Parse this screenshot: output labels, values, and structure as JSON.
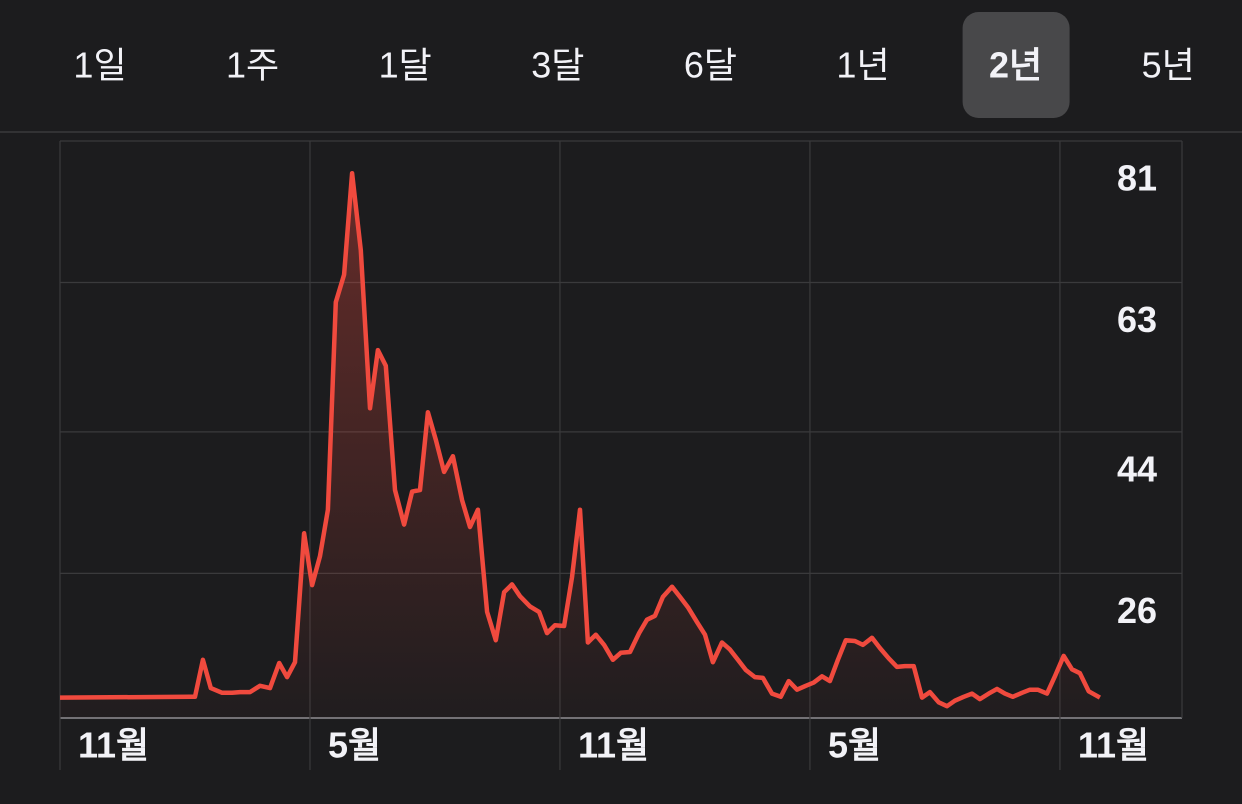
{
  "tabs": {
    "items": [
      "1일",
      "1주",
      "1달",
      "3달",
      "6달",
      "1년",
      "2년",
      "5년"
    ],
    "selected": 6
  },
  "chart_data": {
    "type": "line",
    "x": [
      1.0,
      4.12,
      4.24,
      4.43,
      4.62,
      4.89,
      5.13,
      5.32,
      5.56,
      5.8,
      6.04,
      6.26,
      6.45,
      6.64,
      6.86,
      7.05,
      7.24,
      7.43,
      7.62,
      7.82,
      8.01,
      8.22,
      8.44,
      8.63,
      8.82,
      9.04,
      9.26,
      9.45,
      9.64,
      9.83,
      10.02,
      10.22,
      10.43,
      10.65,
      10.84,
      11.03,
      11.25,
      11.46,
      11.66,
      11.85,
      12.04,
      12.28,
      12.5,
      12.69,
      12.88,
      13.1,
      13.29,
      13.48,
      13.67,
      13.86,
      14.06,
      14.27,
      14.46,
      14.68,
      14.9,
      15.09,
      15.28,
      15.47,
      15.69,
      15.88,
      16.07,
      16.29,
      16.48,
      16.67,
      16.89,
      17.08,
      17.27,
      17.46,
      17.68,
      17.87,
      18.09,
      18.3,
      18.49,
      18.69,
      18.9,
      19.09,
      19.29,
      19.48,
      19.67,
      19.86,
      20.08,
      20.27,
      20.49,
      20.68,
      20.89,
      21.09,
      21.28,
      21.49,
      21.69,
      21.88,
      22.09,
      22.29,
      22.48,
      22.69,
      22.89,
      23.08,
      23.29,
      23.49,
      23.68,
      23.87,
      24.09,
      24.28,
      24.47,
      24.69,
      24.88,
      25.09,
      25.29,
      25.48,
      25.69,
      25.96
    ],
    "series": [
      {
        "color": "#f04a3e",
        "values": [
          10.2,
          10.3,
          10.3,
          15.0,
          11.4,
          10.8,
          10.8,
          10.9,
          10.9,
          11.7,
          11.4,
          14.6,
          12.8,
          14.7,
          31.1,
          24.5,
          28.2,
          34.1,
          60.5,
          64.0,
          76.9,
          67.1,
          47.0,
          54.4,
          52.4,
          36.6,
          32.2,
          36.4,
          36.6,
          46.5,
          43.0,
          38.9,
          40.9,
          35.3,
          31.9,
          34.1,
          21.1,
          17.5,
          23.6,
          24.6,
          23.1,
          21.8,
          21.1,
          18.4,
          19.4,
          19.3,
          25.5,
          34.1,
          17.2,
          18.2,
          16.9,
          15.0,
          15.9,
          16.0,
          18.4,
          20.1,
          20.6,
          23.0,
          24.3,
          23.0,
          21.7,
          19.8,
          18.2,
          14.7,
          17.2,
          16.3,
          15.0,
          13.7,
          12.8,
          12.7,
          10.7,
          10.3,
          12.3,
          11.2,
          11.7,
          12.1,
          12.9,
          12.3,
          15.0,
          17.5,
          17.4,
          16.9,
          17.8,
          16.5,
          15.2,
          14.1,
          14.2,
          14.2,
          10.2,
          10.9,
          9.6,
          9.1,
          9.8,
          10.3,
          10.7,
          10.0,
          10.7,
          11.3,
          10.7,
          10.3,
          10.8,
          11.2,
          11.2,
          10.7,
          12.9,
          15.5,
          13.8,
          13.3,
          11.0,
          10.2
        ]
      }
    ],
    "xlim": [
      1,
      27.93
    ],
    "ylim": [
      7.6,
      81
    ],
    "xticks": [
      {
        "value": 1,
        "label": "11월"
      },
      {
        "value": 7,
        "label": "5월"
      },
      {
        "value": 13,
        "label": "11월"
      },
      {
        "value": 19,
        "label": "5월"
      },
      {
        "value": 25,
        "label": "11월"
      }
    ],
    "yticks": [
      81,
      63,
      44,
      26
    ],
    "grid": true
  }
}
